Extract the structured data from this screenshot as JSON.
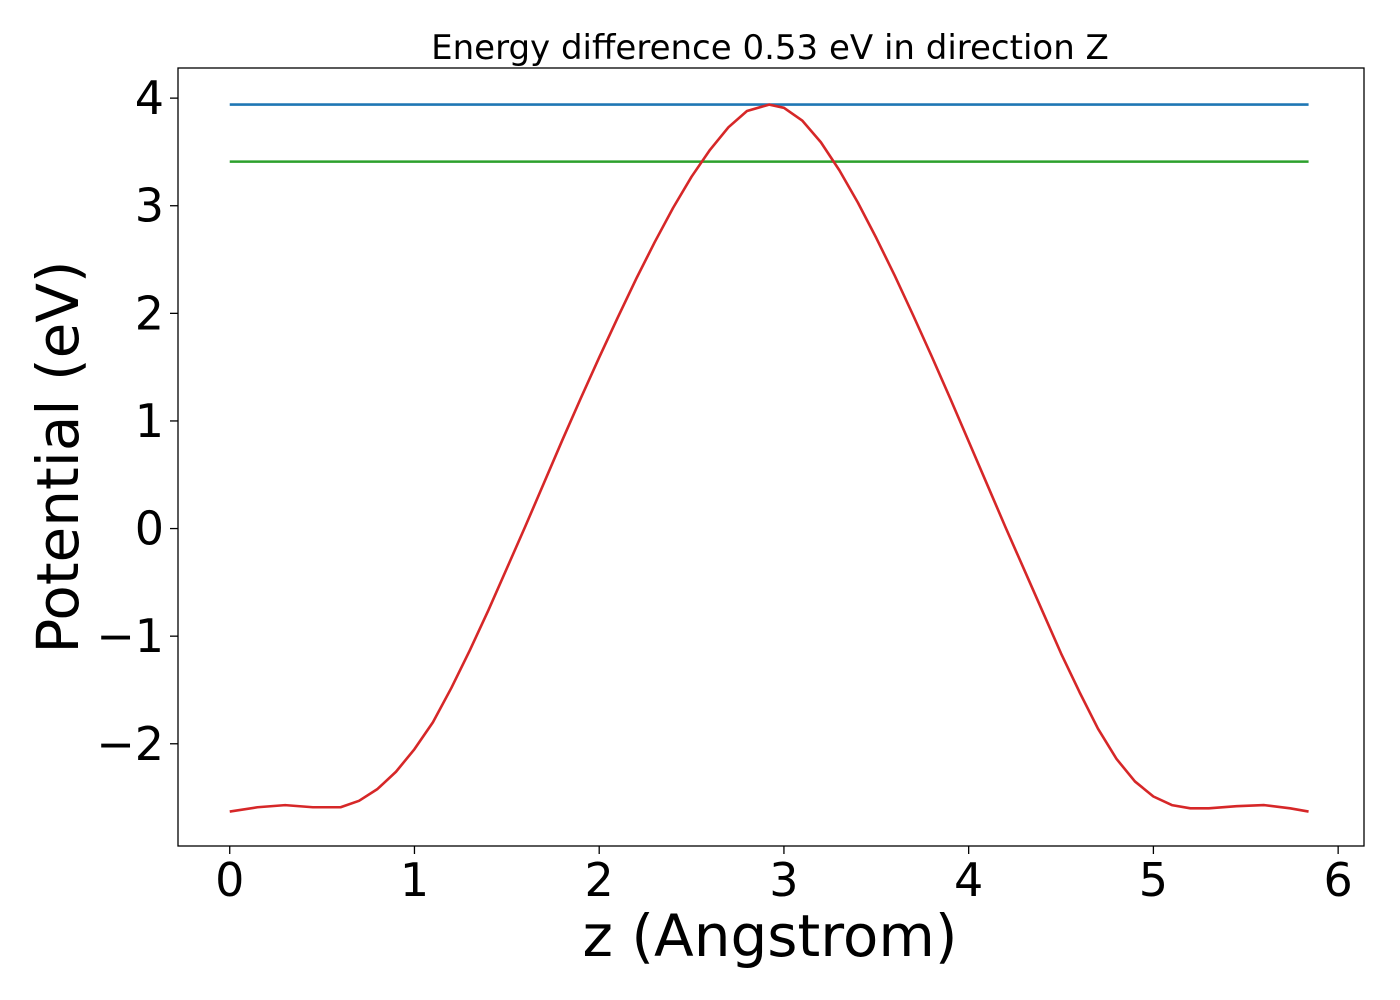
{
  "chart_data": {
    "type": "line",
    "title": "Energy difference 0.53 eV in direction Z",
    "xlabel": "z (Angstrom)",
    "ylabel": "Potential (eV)",
    "xlim": [
      -0.28,
      6.14
    ],
    "ylim": [
      -2.95,
      4.28
    ],
    "xticks": [
      0,
      1,
      2,
      3,
      4,
      5,
      6
    ],
    "yticks": [
      -2,
      -1,
      0,
      1,
      2,
      3,
      4
    ],
    "xtick_labels": [
      "0",
      "1",
      "2",
      "3",
      "4",
      "5",
      "6"
    ],
    "ytick_labels": [
      "−2",
      "−1",
      "0",
      "1",
      "2",
      "3",
      "4"
    ],
    "grid": false,
    "series": [
      {
        "color": "#1f77b4",
        "x": [
          0,
          5.84
        ],
        "y": [
          3.94,
          3.94
        ]
      },
      {
        "color": "#2ca02c",
        "x": [
          0,
          5.84
        ],
        "y": [
          3.41,
          3.41
        ]
      },
      {
        "color": "#d62728",
        "x": [
          0,
          0.15,
          0.3,
          0.45,
          0.6,
          0.7,
          0.8,
          0.9,
          1.0,
          1.1,
          1.2,
          1.3,
          1.4,
          1.5,
          1.6,
          1.7,
          1.8,
          1.9,
          2.0,
          2.1,
          2.2,
          2.3,
          2.4,
          2.5,
          2.6,
          2.7,
          2.8,
          2.92,
          3.0,
          3.1,
          3.2,
          3.3,
          3.4,
          3.5,
          3.6,
          3.7,
          3.8,
          3.9,
          4.0,
          4.1,
          4.2,
          4.3,
          4.4,
          4.5,
          4.6,
          4.7,
          4.8,
          4.9,
          5.0,
          5.1,
          5.2,
          5.3,
          5.45,
          5.6,
          5.74,
          5.84
        ],
        "y": [
          -2.63,
          -2.59,
          -2.57,
          -2.59,
          -2.59,
          -2.53,
          -2.42,
          -2.26,
          -2.05,
          -1.8,
          -1.48,
          -1.13,
          -0.76,
          -0.37,
          0.02,
          0.42,
          0.82,
          1.21,
          1.59,
          1.96,
          2.32,
          2.66,
          2.98,
          3.27,
          3.52,
          3.73,
          3.88,
          3.94,
          3.91,
          3.79,
          3.59,
          3.33,
          3.03,
          2.7,
          2.35,
          1.98,
          1.6,
          1.21,
          0.81,
          0.41,
          0.01,
          -0.38,
          -0.77,
          -1.16,
          -1.52,
          -1.86,
          -2.14,
          -2.35,
          -2.49,
          -2.57,
          -2.6,
          -2.6,
          -2.58,
          -2.57,
          -2.6,
          -2.63
        ]
      }
    ]
  }
}
